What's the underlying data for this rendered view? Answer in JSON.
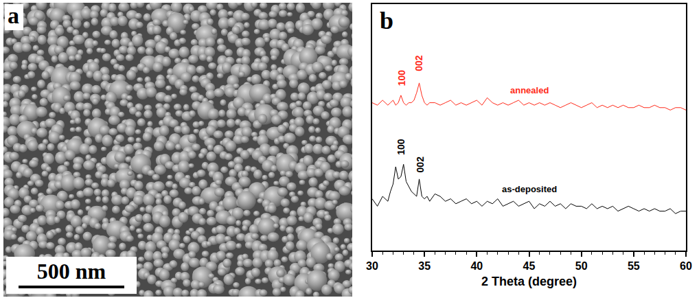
{
  "panels": [
    {
      "letter": "a",
      "type": "image",
      "scale_bar": "500 nm"
    }
  ],
  "chart_data": {
    "type": "line",
    "letter": "b",
    "x_label": "2 Theta (degree)",
    "x": [
      30,
      30.5,
      31,
      31.5,
      31.75,
      32,
      32.25,
      32.5,
      32.75,
      33,
      33.25,
      33.5,
      33.75,
      34,
      34.25,
      34.5,
      34.75,
      35,
      35.25,
      35.5,
      36,
      36.5,
      37,
      37.5,
      38,
      38.5,
      39,
      39.5,
      40,
      40.5,
      41,
      41.5,
      42,
      42.5,
      43,
      43.5,
      44,
      44.5,
      45,
      45.5,
      46,
      46.5,
      47,
      47.5,
      48,
      48.5,
      49,
      49.5,
      50,
      50.5,
      51,
      51.5,
      52,
      52.5,
      53,
      53.5,
      54,
      54.5,
      55,
      55.5,
      56,
      56.5,
      57,
      57.5,
      58,
      58.5,
      59,
      59.5,
      60
    ],
    "series": [
      {
        "name": "annealed",
        "color": "#ff2a1a",
        "values": [
          60,
          59,
          61,
          59,
          60,
          61,
          59,
          60,
          63,
          60,
          59,
          60,
          60,
          61,
          64,
          68,
          63,
          60,
          59,
          60,
          60,
          59,
          60,
          61,
          59,
          60,
          59,
          60,
          61,
          59,
          62,
          60,
          59,
          60,
          59,
          60,
          61,
          59,
          60,
          59,
          60,
          59,
          60,
          59,
          58,
          59,
          60,
          59,
          58,
          59,
          60,
          58,
          59,
          58,
          59,
          58,
          59,
          58,
          58,
          59,
          58,
          58,
          59,
          58,
          58,
          57,
          58,
          58,
          57
        ]
      },
      {
        "name": "as-deposited",
        "color": "#000000",
        "values": [
          21,
          18,
          22,
          20,
          24,
          27,
          34,
          29,
          30,
          35,
          28,
          26,
          24,
          23,
          22,
          29,
          22,
          21,
          22,
          20,
          23,
          22,
          20,
          21,
          19,
          20,
          21,
          19,
          20,
          18,
          20,
          19,
          21,
          18,
          19,
          20,
          18,
          19,
          20,
          17,
          19,
          18,
          20,
          18,
          19,
          17,
          19,
          18,
          18,
          17,
          19,
          17,
          18,
          17,
          18,
          16,
          17,
          18,
          17,
          16,
          17,
          16,
          17,
          16,
          16,
          17,
          15,
          16,
          16
        ]
      }
    ],
    "annotations": [
      {
        "text": "100",
        "x": 32.8,
        "y": 70,
        "color": "#ff2a1a"
      },
      {
        "text": "002",
        "x": 34.5,
        "y": 76,
        "color": "#ff2a1a"
      },
      {
        "text": "100",
        "x": 32.8,
        "y": 42,
        "color": "#000000"
      },
      {
        "text": "002",
        "x": 34.6,
        "y": 35,
        "color": "#000000"
      }
    ],
    "xlim": [
      30,
      60
    ],
    "xticks": [
      30,
      35,
      40,
      45,
      50,
      55,
      60
    ],
    "ylim": [
      0,
      100
    ],
    "yticks": [],
    "grid": false,
    "tick_labels": "x"
  }
}
